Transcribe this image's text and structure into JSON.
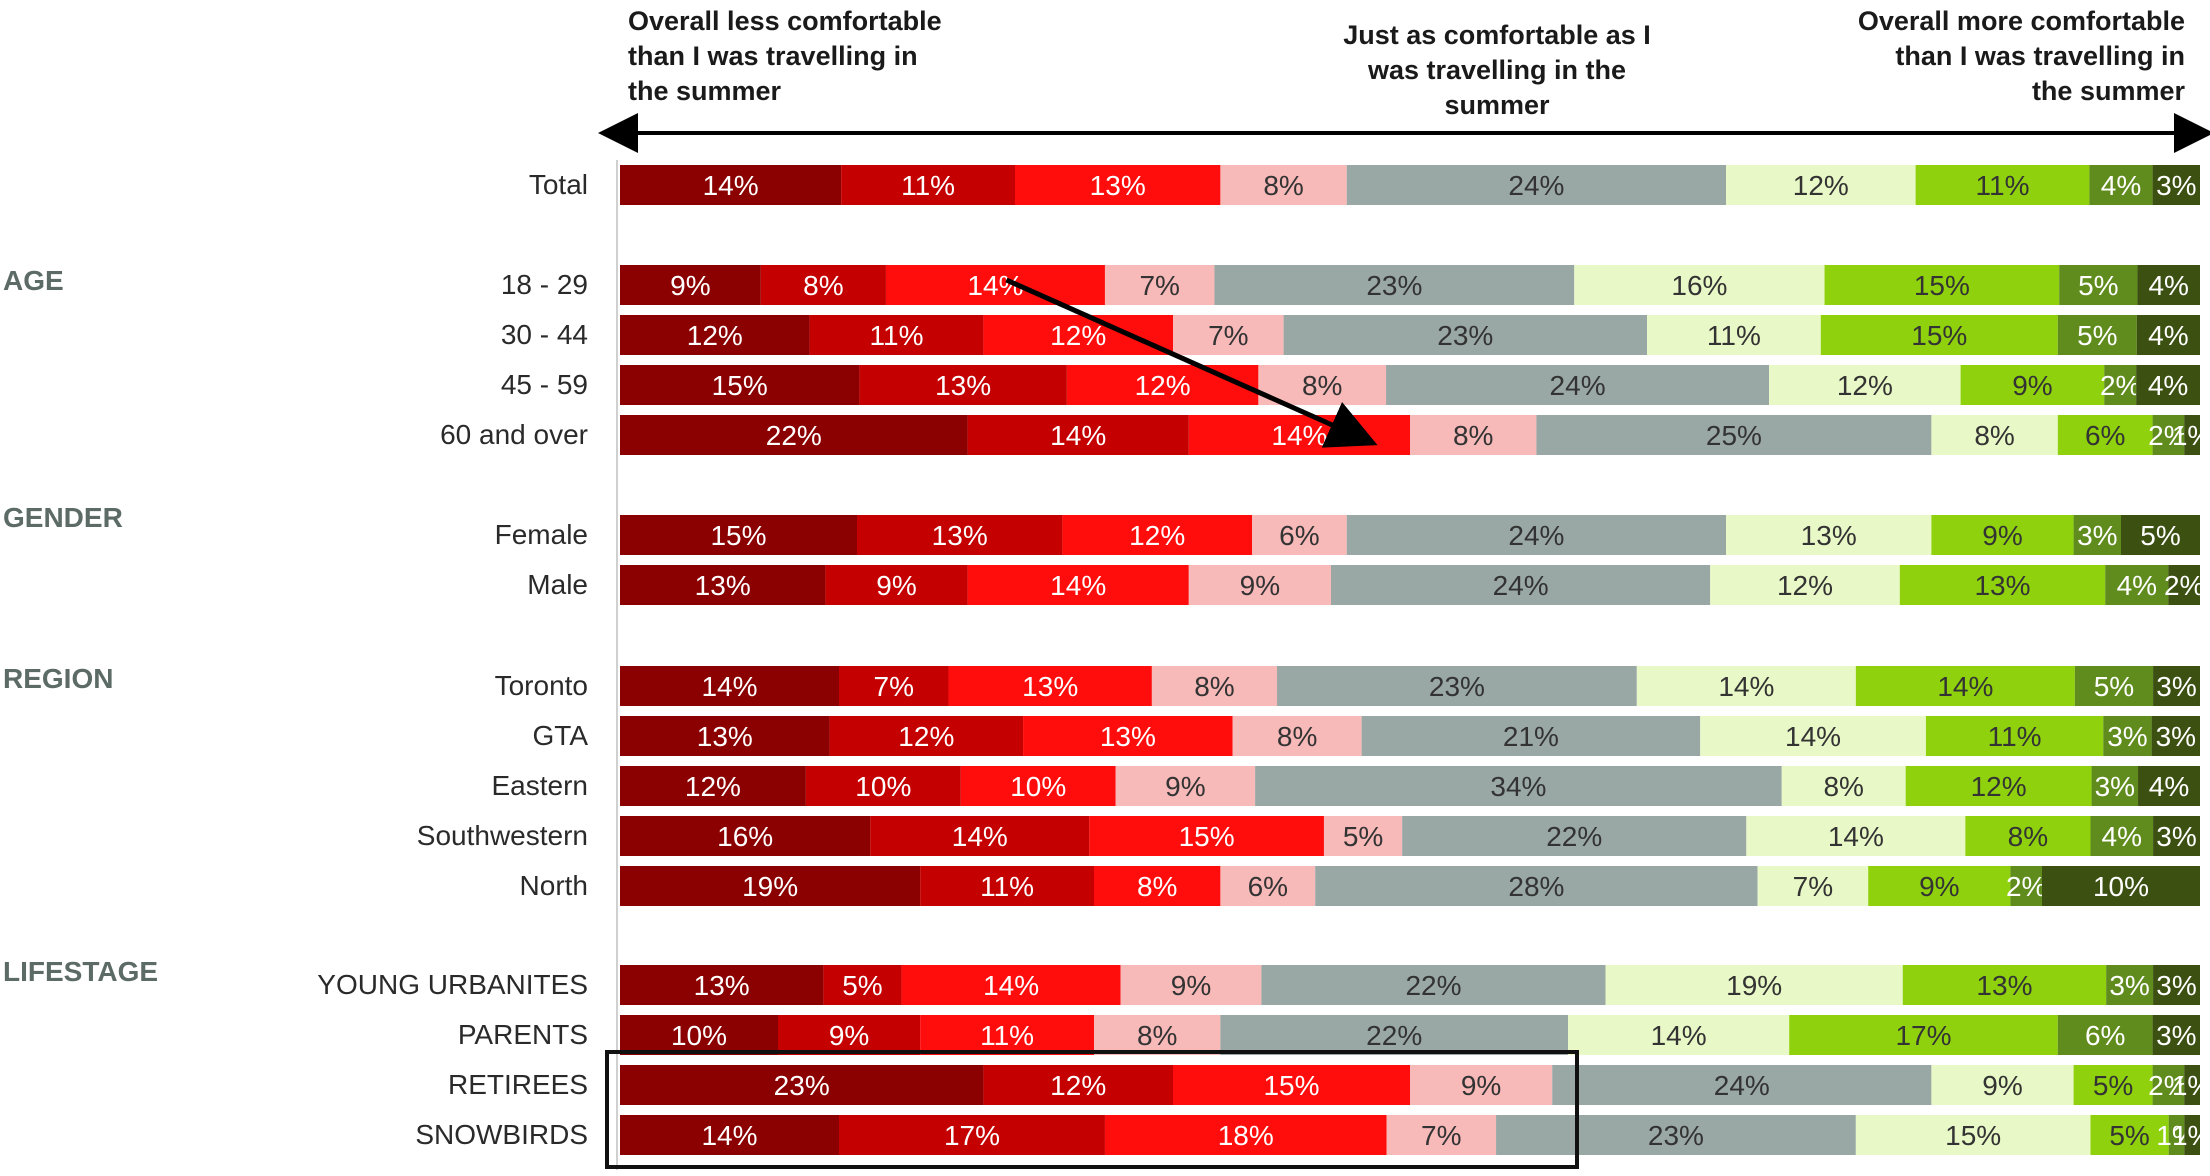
{
  "chart_data": {
    "type": "bar",
    "orientation": "horizontal",
    "stacked": true,
    "header": {
      "left": [
        "Overall less comfortable",
        "than I was travelling in",
        "the summer"
      ],
      "middle": [
        "Just as comfortable as I",
        "was travelling in the",
        "summer"
      ],
      "right": [
        "Overall more comfortable",
        "than I was travelling in",
        "the summer"
      ]
    },
    "colors": [
      "#8b0000",
      "#c40000",
      "#ff0d0d",
      "#f8b9b9",
      "#9aa8a5",
      "#e9f8c7",
      "#8fd10d",
      "#5f8c1c",
      "#3c5012"
    ],
    "groups": [
      {
        "label": "",
        "rows": [
          {
            "label": "Total",
            "values": [
              14,
              11,
              13,
              8,
              24,
              12,
              11,
              4,
              3
            ]
          }
        ]
      },
      {
        "label": "AGE",
        "rows": [
          {
            "label": "18 - 29",
            "values": [
              9,
              8,
              14,
              7,
              23,
              16,
              15,
              5,
              4
            ]
          },
          {
            "label": "30 - 44",
            "values": [
              12,
              11,
              12,
              7,
              23,
              11,
              15,
              5,
              4
            ]
          },
          {
            "label": "45 - 59",
            "values": [
              15,
              13,
              12,
              8,
              24,
              12,
              9,
              2,
              4
            ]
          },
          {
            "label": "60 and over",
            "values": [
              22,
              14,
              14,
              8,
              25,
              8,
              6,
              2,
              1
            ]
          }
        ]
      },
      {
        "label": "GENDER",
        "rows": [
          {
            "label": "Female",
            "values": [
              15,
              13,
              12,
              6,
              24,
              13,
              9,
              3,
              5
            ]
          },
          {
            "label": "Male",
            "values": [
              13,
              9,
              14,
              9,
              24,
              12,
              13,
              4,
              2
            ]
          }
        ]
      },
      {
        "label": "REGION",
        "rows": [
          {
            "label": "Toronto",
            "values": [
              14,
              7,
              13,
              8,
              23,
              14,
              14,
              5,
              3
            ]
          },
          {
            "label": "GTA",
            "values": [
              13,
              12,
              13,
              8,
              21,
              14,
              11,
              3,
              3
            ]
          },
          {
            "label": "Eastern",
            "values": [
              12,
              10,
              10,
              9,
              34,
              8,
              12,
              3,
              4
            ]
          },
          {
            "label": "Southwestern",
            "values": [
              16,
              14,
              15,
              5,
              22,
              14,
              8,
              4,
              3
            ]
          },
          {
            "label": "North",
            "values": [
              19,
              11,
              8,
              6,
              28,
              7,
              9,
              2,
              10
            ]
          }
        ]
      },
      {
        "label": "LIFESTAGE",
        "rows": [
          {
            "label": "YOUNG URBANITES",
            "values": [
              13,
              5,
              14,
              9,
              22,
              19,
              13,
              3,
              3
            ]
          },
          {
            "label": "PARENTS",
            "values": [
              10,
              9,
              11,
              8,
              22,
              14,
              17,
              6,
              3
            ]
          },
          {
            "label": "RETIREES",
            "values": [
              23,
              12,
              15,
              9,
              24,
              9,
              5,
              2,
              1
            ]
          },
          {
            "label": "SNOWBIRDS",
            "values": [
              14,
              17,
              18,
              7,
              23,
              15,
              5,
              1,
              1
            ]
          }
        ]
      }
    ],
    "highlight_box_rows": [
      "RETIREES",
      "SNOWBIRDS"
    ],
    "trend_arrow": {
      "from_row": "18 - 29",
      "to_row": "60 and over"
    }
  }
}
